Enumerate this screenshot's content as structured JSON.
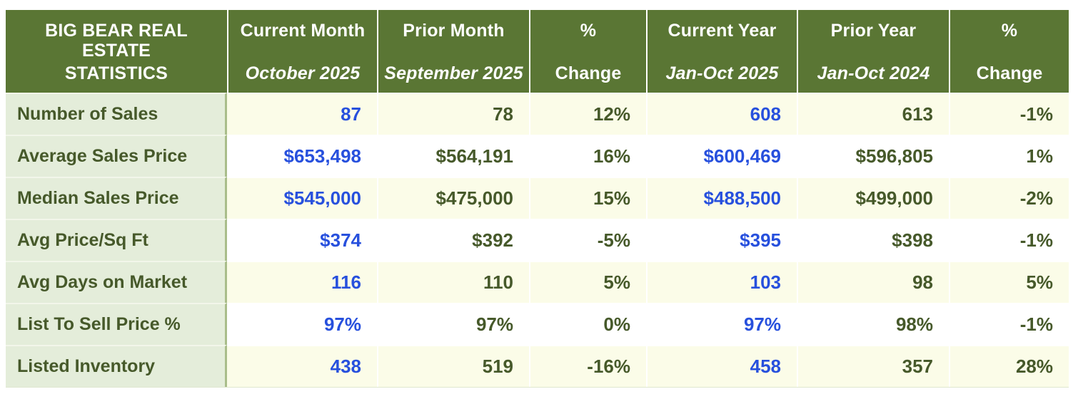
{
  "title": {
    "line1": "BIG BEAR REAL ESTATE",
    "line2": "STATISTICS"
  },
  "columns": [
    {
      "label": "Current Month",
      "sublabel": "October 2025"
    },
    {
      "label": "Prior Month",
      "sublabel": "September 2025"
    },
    {
      "label": "%",
      "sublabel": "Change"
    },
    {
      "label": "Current Year",
      "sublabel": "Jan-Oct 2025"
    },
    {
      "label": "Prior Year",
      "sublabel": "Jan-Oct 2024"
    },
    {
      "label": "%",
      "sublabel": "Change"
    }
  ],
  "rows": [
    {
      "label": "Number of Sales",
      "values": [
        "87",
        "78",
        "12%",
        "608",
        "613",
        "-1%"
      ]
    },
    {
      "label": "Average Sales Price",
      "values": [
        "$653,498",
        "$564,191",
        "16%",
        "$600,469",
        "$596,805",
        "1%"
      ]
    },
    {
      "label": "Median Sales Price",
      "values": [
        "$545,000",
        "$475,000",
        "15%",
        "$488,500",
        "$499,000",
        "-2%"
      ]
    },
    {
      "label": "Avg Price/Sq Ft",
      "values": [
        "$374",
        "$392",
        "-5%",
        "$395",
        "$398",
        "-1%"
      ]
    },
    {
      "label": "Avg Days on Market",
      "values": [
        "116",
        "110",
        "5%",
        "103",
        "98",
        "5%"
      ]
    },
    {
      "label": "List To Sell Price %",
      "values": [
        "97%",
        "97%",
        "0%",
        "97%",
        "98%",
        "-1%"
      ]
    },
    {
      "label": "Listed Inventory",
      "values": [
        "438",
        "519",
        "-16%",
        "458",
        "357",
        "28%"
      ]
    }
  ],
  "colors": {
    "header_bg": "#5a7634",
    "header_text": "#ffffff",
    "label_col_bg": "#e4edda",
    "row_bg": "#ffffff",
    "row_alt_bg": "#fbfce8",
    "text_green": "#46592a",
    "text_blue": "#2750dd",
    "divider_green": "#a9bd8a",
    "divider_light": "#dfe7cf"
  },
  "chart_data": {
    "type": "table",
    "title": "Big Bear Real Estate Statistics",
    "columns": [
      "Metric",
      "Current Month (October 2025)",
      "Prior Month (September 2025)",
      "% Change",
      "Current Year (Jan-Oct 2025)",
      "Prior Year (Jan-Oct 2024)",
      "% Change"
    ],
    "rows": [
      {
        "metric": "Number of Sales",
        "current_month": 87,
        "prior_month": 78,
        "month_change_pct": 12,
        "current_year": 608,
        "prior_year": 613,
        "year_change_pct": -1
      },
      {
        "metric": "Average Sales Price",
        "current_month": 653498,
        "prior_month": 564191,
        "month_change_pct": 16,
        "current_year": 600469,
        "prior_year": 596805,
        "year_change_pct": 1
      },
      {
        "metric": "Median Sales Price",
        "current_month": 545000,
        "prior_month": 475000,
        "month_change_pct": 15,
        "current_year": 488500,
        "prior_year": 499000,
        "year_change_pct": -2
      },
      {
        "metric": "Avg Price/Sq Ft",
        "current_month": 374,
        "prior_month": 392,
        "month_change_pct": -5,
        "current_year": 395,
        "prior_year": 398,
        "year_change_pct": -1
      },
      {
        "metric": "Avg Days on Market",
        "current_month": 116,
        "prior_month": 110,
        "month_change_pct": 5,
        "current_year": 103,
        "prior_year": 98,
        "year_change_pct": 5
      },
      {
        "metric": "List To Sell Price %",
        "current_month": 97,
        "prior_month": 97,
        "month_change_pct": 0,
        "current_year": 97,
        "prior_year": 98,
        "year_change_pct": -1
      },
      {
        "metric": "Listed Inventory",
        "current_month": 438,
        "prior_month": 519,
        "month_change_pct": -16,
        "current_year": 458,
        "prior_year": 357,
        "year_change_pct": 28
      }
    ]
  }
}
